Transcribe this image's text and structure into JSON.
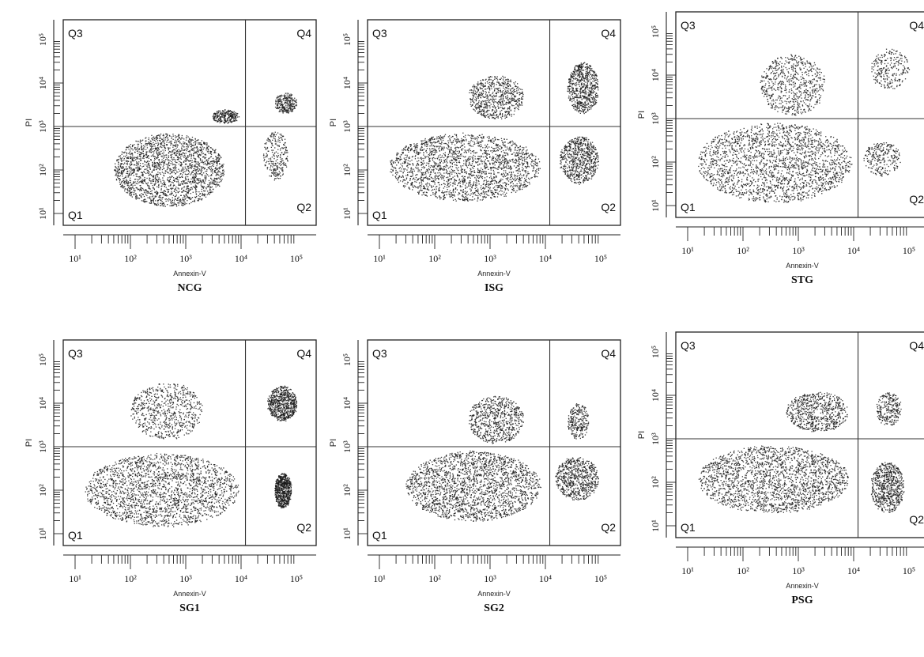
{
  "chart_data": [
    {
      "type": "scatter",
      "caption": "NCG",
      "xlabel": "Annexin-V",
      "ylabel": "PI",
      "x_scale": "log",
      "y_scale": "log",
      "xlim": [
        10,
        100000
      ],
      "ylim": [
        10,
        100000
      ],
      "x_ticks": [
        10,
        100,
        1000,
        10000,
        100000
      ],
      "y_ticks": [
        10,
        100,
        1000,
        10000,
        100000
      ],
      "x_tick_labels": [
        "10¹",
        "10²",
        "10³",
        "10⁴",
        "10⁵"
      ],
      "y_tick_labels": [
        "10¹",
        "10²",
        "10³",
        "10⁴",
        "10⁵"
      ],
      "gate": {
        "x": 12000,
        "y": 1000
      },
      "quadrant_labels": [
        "Q1",
        "Q2",
        "Q3",
        "Q4"
      ],
      "clusters": [
        {
          "quadrant": "Q1",
          "x_range": [
            50,
            5000
          ],
          "y_range": [
            15,
            700
          ],
          "density": "high"
        },
        {
          "quadrant": "Q2",
          "x_range": [
            25000,
            70000
          ],
          "y_range": [
            60,
            800
          ],
          "density": "low"
        },
        {
          "quadrant": "Q3",
          "x_range": [
            3000,
            9000
          ],
          "y_range": [
            1200,
            2500
          ],
          "density": "low"
        },
        {
          "quadrant": "Q4",
          "x_range": [
            40000,
            100000
          ],
          "y_range": [
            2000,
            6000
          ],
          "density": "low"
        }
      ]
    },
    {
      "type": "scatter",
      "caption": "ISG",
      "xlabel": "Annexin-V",
      "ylabel": "PI",
      "x_scale": "log",
      "y_scale": "log",
      "xlim": [
        10,
        100000
      ],
      "ylim": [
        10,
        100000
      ],
      "x_ticks": [
        10,
        100,
        1000,
        10000,
        100000
      ],
      "y_ticks": [
        10,
        100,
        1000,
        10000,
        100000
      ],
      "x_tick_labels": [
        "10¹",
        "10²",
        "10³",
        "10⁴",
        "10⁵"
      ],
      "y_tick_labels": [
        "10¹",
        "10²",
        "10³",
        "10⁴",
        "10⁵"
      ],
      "gate": {
        "x": 12000,
        "y": 1000
      },
      "quadrant_labels": [
        "Q1",
        "Q2",
        "Q3",
        "Q4"
      ],
      "clusters": [
        {
          "quadrant": "Q1",
          "x_range": [
            15,
            8000
          ],
          "y_range": [
            20,
            700
          ],
          "density": "high"
        },
        {
          "quadrant": "Q2",
          "x_range": [
            18000,
            90000
          ],
          "y_range": [
            50,
            600
          ],
          "density": "medium"
        },
        {
          "quadrant": "Q3",
          "x_range": [
            400,
            4000
          ],
          "y_range": [
            1500,
            15000
          ],
          "density": "medium"
        },
        {
          "quadrant": "Q4",
          "x_range": [
            25000,
            90000
          ],
          "y_range": [
            2000,
            30000
          ],
          "density": "medium"
        }
      ]
    },
    {
      "type": "scatter",
      "caption": "STG",
      "xlabel": "Annexin-V",
      "ylabel": "PI",
      "x_scale": "log",
      "y_scale": "log",
      "xlim": [
        10,
        100000
      ],
      "ylim": [
        10,
        100000
      ],
      "x_ticks": [
        10,
        100,
        1000,
        10000,
        100000
      ],
      "y_ticks": [
        10,
        100,
        1000,
        10000,
        100000
      ],
      "x_tick_labels": [
        "10¹",
        "10²",
        "10³",
        "10⁴",
        "10⁵"
      ],
      "y_tick_labels": [
        "10¹",
        "10²",
        "10³",
        "10⁴",
        "10⁵"
      ],
      "gate": {
        "x": 12000,
        "y": 1000
      },
      "quadrant_labels": [
        "Q1",
        "Q2",
        "Q3",
        "Q4"
      ],
      "clusters": [
        {
          "quadrant": "Q1",
          "x_range": [
            15,
            9000
          ],
          "y_range": [
            12,
            800
          ],
          "density": "high"
        },
        {
          "quadrant": "Q2",
          "x_range": [
            15000,
            70000
          ],
          "y_range": [
            50,
            300
          ],
          "density": "low"
        },
        {
          "quadrant": "Q3",
          "x_range": [
            200,
            3000
          ],
          "y_range": [
            1200,
            30000
          ],
          "density": "medium"
        },
        {
          "quadrant": "Q4",
          "x_range": [
            20000,
            100000
          ],
          "y_range": [
            5000,
            40000
          ],
          "density": "low"
        }
      ]
    },
    {
      "type": "scatter",
      "caption": "SG1",
      "xlabel": "Annexin-V",
      "ylabel": "PI",
      "x_scale": "log",
      "y_scale": "log",
      "xlim": [
        10,
        100000
      ],
      "ylim": [
        10,
        100000
      ],
      "x_ticks": [
        10,
        100,
        1000,
        10000,
        100000
      ],
      "y_ticks": [
        10,
        100,
        1000,
        10000,
        100000
      ],
      "x_tick_labels": [
        "10¹",
        "10²",
        "10³",
        "10⁴",
        "10⁵"
      ],
      "y_tick_labels": [
        "10¹",
        "10²",
        "10³",
        "10⁴",
        "10⁵"
      ],
      "gate": {
        "x": 12000,
        "y": 1000
      },
      "quadrant_labels": [
        "Q1",
        "Q2",
        "Q3",
        "Q4"
      ],
      "clusters": [
        {
          "quadrant": "Q1",
          "x_range": [
            15,
            9000
          ],
          "y_range": [
            15,
            700
          ],
          "density": "high"
        },
        {
          "quadrant": "Q2",
          "x_range": [
            40000,
            80000
          ],
          "y_range": [
            40,
            250
          ],
          "density": "medium"
        },
        {
          "quadrant": "Q3",
          "x_range": [
            100,
            2000
          ],
          "y_range": [
            1500,
            30000
          ],
          "density": "medium"
        },
        {
          "quadrant": "Q4",
          "x_range": [
            30000,
            100000
          ],
          "y_range": [
            4000,
            25000
          ],
          "density": "medium"
        }
      ]
    },
    {
      "type": "scatter",
      "caption": "SG2",
      "xlabel": "Annexin-V",
      "ylabel": "PI",
      "x_scale": "log",
      "y_scale": "log",
      "xlim": [
        10,
        100000
      ],
      "ylim": [
        10,
        100000
      ],
      "x_ticks": [
        10,
        100,
        1000,
        10000,
        100000
      ],
      "y_ticks": [
        10,
        100,
        1000,
        10000,
        100000
      ],
      "x_tick_labels": [
        "10¹",
        "10²",
        "10³",
        "10⁴",
        "10⁵"
      ],
      "y_tick_labels": [
        "10¹",
        "10²",
        "10³",
        "10⁴",
        "10⁵"
      ],
      "gate": {
        "x": 12000,
        "y": 1000
      },
      "quadrant_labels": [
        "Q1",
        "Q2",
        "Q3",
        "Q4"
      ],
      "clusters": [
        {
          "quadrant": "Q1",
          "x_range": [
            30,
            8000
          ],
          "y_range": [
            20,
            800
          ],
          "density": "high"
        },
        {
          "quadrant": "Q2",
          "x_range": [
            15000,
            90000
          ],
          "y_range": [
            60,
            600
          ],
          "density": "medium"
        },
        {
          "quadrant": "Q3",
          "x_range": [
            400,
            4000
          ],
          "y_range": [
            1200,
            15000
          ],
          "density": "medium"
        },
        {
          "quadrant": "Q4",
          "x_range": [
            25000,
            60000
          ],
          "y_range": [
            1500,
            10000
          ],
          "density": "low"
        }
      ]
    },
    {
      "type": "scatter",
      "caption": "PSG",
      "xlabel": "Annexin-V",
      "ylabel": "PI",
      "x_scale": "log",
      "y_scale": "log",
      "xlim": [
        10,
        100000
      ],
      "ylim": [
        10,
        100000
      ],
      "x_ticks": [
        10,
        100,
        1000,
        10000,
        100000
      ],
      "y_ticks": [
        10,
        100,
        1000,
        10000,
        100000
      ],
      "x_tick_labels": [
        "10¹",
        "10²",
        "10³",
        "10⁴",
        "10⁵"
      ],
      "y_tick_labels": [
        "10¹",
        "10²",
        "10³",
        "10⁴",
        "10⁵"
      ],
      "gate": {
        "x": 12000,
        "y": 1000
      },
      "quadrant_labels": [
        "Q1",
        "Q2",
        "Q3",
        "Q4"
      ],
      "clusters": [
        {
          "quadrant": "Q1",
          "x_range": [
            15,
            8000
          ],
          "y_range": [
            20,
            700
          ],
          "density": "high"
        },
        {
          "quadrant": "Q2",
          "x_range": [
            20000,
            80000
          ],
          "y_range": [
            20,
            300
          ],
          "density": "medium"
        },
        {
          "quadrant": "Q3",
          "x_range": [
            600,
            8000
          ],
          "y_range": [
            1500,
            12000
          ],
          "density": "medium"
        },
        {
          "quadrant": "Q4",
          "x_range": [
            25000,
            70000
          ],
          "y_range": [
            2000,
            12000
          ],
          "density": "low"
        }
      ]
    }
  ]
}
